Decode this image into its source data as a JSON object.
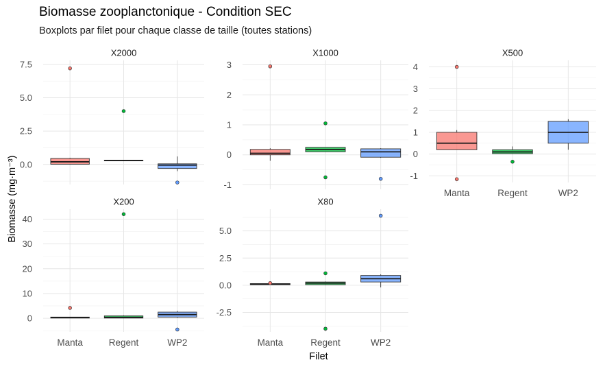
{
  "chart_data": {
    "type": "boxplot",
    "title": "Biomasse zooplanctonique - Condition SEC",
    "subtitle": "Boxplots par filet pour chaque classe de taille (toutes stations)",
    "xlabel": "Filet",
    "ylabel": "Biomasse (mg·m⁻³)",
    "categories": [
      "Manta",
      "Regent",
      "WP2"
    ],
    "colors": {
      "Manta": "#F8766D",
      "Regent": "#00BA38",
      "WP2": "#619CFF"
    },
    "panels": [
      {
        "name": "X2000",
        "ylim": [
          -1.5,
          7.8
        ],
        "yticks": [
          {
            "value": 0,
            "label": "0.0"
          },
          {
            "value": 2.5,
            "label": "2.5"
          },
          {
            "value": 5,
            "label": "5.0"
          },
          {
            "value": 7.5,
            "label": "7.5"
          }
        ],
        "boxes": [
          {
            "filet": "Manta",
            "whisker_low": 0.0,
            "q1": 0.02,
            "median": 0.2,
            "q3": 0.45,
            "whisker_high": 0.5,
            "outliers": [
              7.2
            ]
          },
          {
            "filet": "Regent",
            "whisker_low": 0.28,
            "q1": 0.28,
            "median": 0.3,
            "q3": 0.32,
            "whisker_high": 0.35,
            "outliers": [
              4.0
            ]
          },
          {
            "filet": "WP2",
            "whisker_low": -0.5,
            "q1": -0.3,
            "median": -0.05,
            "q3": 0.05,
            "whisker_high": 0.6,
            "outliers": [
              -1.35
            ]
          }
        ]
      },
      {
        "name": "X1000",
        "ylim": [
          -1.15,
          3.15
        ],
        "yticks": [
          {
            "value": -1,
            "label": "-1"
          },
          {
            "value": 0,
            "label": "0"
          },
          {
            "value": 1,
            "label": "1"
          },
          {
            "value": 2,
            "label": "2"
          },
          {
            "value": 3,
            "label": "3"
          }
        ],
        "boxes": [
          {
            "filet": "Manta",
            "whisker_low": -0.2,
            "q1": 0.0,
            "median": 0.05,
            "q3": 0.18,
            "whisker_high": 0.22,
            "outliers": [
              2.95
            ]
          },
          {
            "filet": "Regent",
            "whisker_low": 0.1,
            "q1": 0.1,
            "median": 0.18,
            "q3": 0.25,
            "whisker_high": 0.25,
            "outliers": [
              1.05,
              -0.75
            ]
          },
          {
            "filet": "WP2",
            "whisker_low": -0.1,
            "q1": -0.08,
            "median": 0.1,
            "q3": 0.2,
            "whisker_high": 0.22,
            "outliers": [
              -0.8
            ]
          }
        ]
      },
      {
        "name": "X500",
        "ylim": [
          -1.3,
          4.3
        ],
        "yticks": [
          {
            "value": -1,
            "label": "-1"
          },
          {
            "value": 0,
            "label": "0"
          },
          {
            "value": 1,
            "label": "1"
          },
          {
            "value": 2,
            "label": "2"
          },
          {
            "value": 3,
            "label": "3"
          },
          {
            "value": 4,
            "label": "4"
          }
        ],
        "boxes": [
          {
            "filet": "Manta",
            "whisker_low": 0.2,
            "q1": 0.2,
            "median": 0.5,
            "q3": 1.0,
            "whisker_high": 1.1,
            "outliers": [
              4.0,
              -1.15
            ]
          },
          {
            "filet": "Regent",
            "whisker_low": 0.0,
            "q1": 0.02,
            "median": 0.1,
            "q3": 0.2,
            "whisker_high": 0.35,
            "outliers": [
              -0.35
            ]
          },
          {
            "filet": "WP2",
            "whisker_low": 0.2,
            "q1": 0.5,
            "median": 1.0,
            "q3": 1.5,
            "whisker_high": 1.6,
            "outliers": []
          }
        ]
      },
      {
        "name": "X200",
        "ylim": [
          -5.5,
          44
        ],
        "yticks": [
          {
            "value": 0,
            "label": "0"
          },
          {
            "value": 10,
            "label": "10"
          },
          {
            "value": 20,
            "label": "20"
          },
          {
            "value": 30,
            "label": "30"
          },
          {
            "value": 40,
            "label": "40"
          }
        ],
        "boxes": [
          {
            "filet": "Manta",
            "whisker_low": 0.0,
            "q1": 0.1,
            "median": 0.3,
            "q3": 0.5,
            "whisker_high": 0.6,
            "outliers": [
              4.2
            ]
          },
          {
            "filet": "Regent",
            "whisker_low": 0.0,
            "q1": 0.1,
            "median": 0.4,
            "q3": 1.0,
            "whisker_high": 1.2,
            "outliers": [
              42.0
            ]
          },
          {
            "filet": "WP2",
            "whisker_low": 0.2,
            "q1": 0.5,
            "median": 1.5,
            "q3": 2.5,
            "whisker_high": 3.0,
            "outliers": [
              -4.5
            ]
          }
        ]
      },
      {
        "name": "X80",
        "ylim": [
          -4.3,
          7.0
        ],
        "yticks": [
          {
            "value": -2.5,
            "label": "-2.5"
          },
          {
            "value": 0,
            "label": "0.0"
          },
          {
            "value": 2.5,
            "label": "2.5"
          },
          {
            "value": 5,
            "label": "5.0"
          }
        ],
        "boxes": [
          {
            "filet": "Manta",
            "whisker_low": 0.05,
            "q1": 0.05,
            "median": 0.1,
            "q3": 0.15,
            "whisker_high": 0.2,
            "outliers": [
              0.2
            ]
          },
          {
            "filet": "Regent",
            "whisker_low": 0.0,
            "q1": 0.05,
            "median": 0.2,
            "q3": 0.3,
            "whisker_high": 0.35,
            "outliers": [
              1.1,
              -4.0
            ]
          },
          {
            "filet": "WP2",
            "whisker_low": -0.2,
            "q1": 0.3,
            "median": 0.6,
            "q3": 0.9,
            "whisker_high": 1.0,
            "outliers": [
              6.4
            ]
          }
        ]
      }
    ]
  }
}
